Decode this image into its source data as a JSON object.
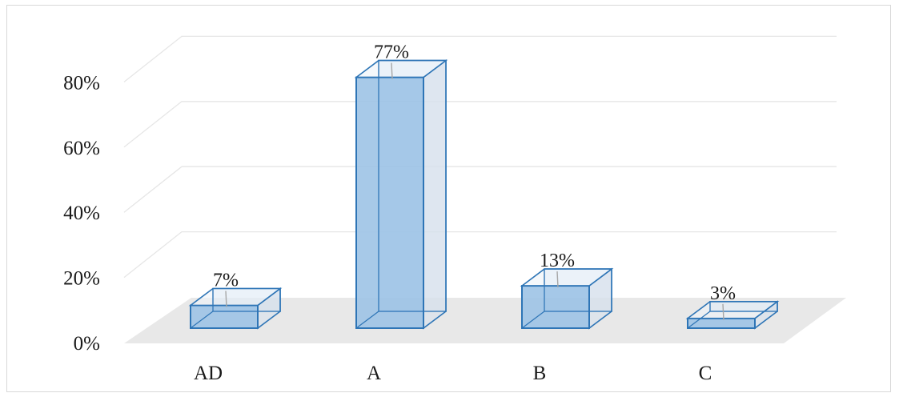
{
  "chart_data": {
    "type": "bar",
    "style": "3d-clustered-column",
    "categories": [
      "AD",
      "A",
      "B",
      "C"
    ],
    "values": [
      7,
      77,
      13,
      3
    ],
    "data_labels": [
      "7%",
      "77%",
      "13%",
      "3%"
    ],
    "y_ticks": [
      "0%",
      "20%",
      "40%",
      "60%",
      "80%"
    ],
    "ylim": [
      0,
      80
    ],
    "grid": true,
    "title": "",
    "xlabel": "",
    "ylabel": "",
    "colors": {
      "bar_fill": "#9dc3e6",
      "bar_stroke": "#2e75b6",
      "floor": "#e8e8e8",
      "grid": "#e6e6e6",
      "leader": "#a6a6a6"
    }
  }
}
